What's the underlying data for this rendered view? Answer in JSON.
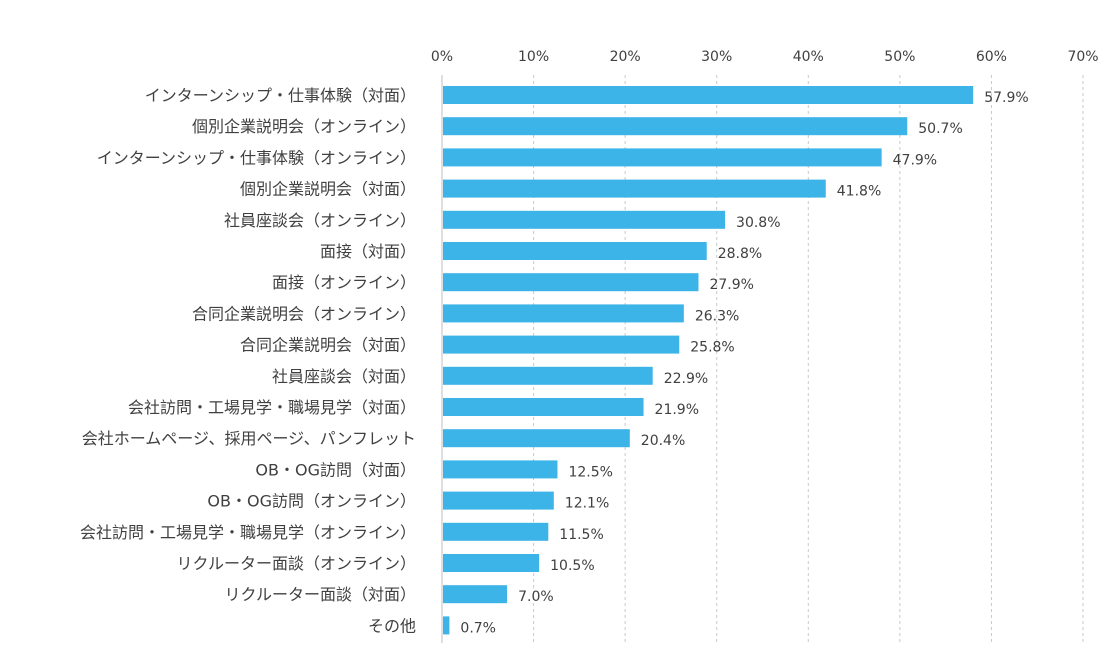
{
  "chart_data": {
    "type": "bar",
    "orientation": "horizontal",
    "title": "",
    "xlabel": "",
    "ylabel": "",
    "xlim": [
      0,
      70
    ],
    "ticks": [
      0,
      10,
      20,
      30,
      40,
      50,
      60,
      70
    ],
    "tick_labels": [
      "0%",
      "10%",
      "20%",
      "30%",
      "40%",
      "50%",
      "60%",
      "70%"
    ],
    "grid": true,
    "bar_color": "#3cb4e8",
    "categories": [
      "インターンシップ・仕事体験（対面）",
      "個別企業説明会（オンライン）",
      "インターンシップ・仕事体験（オンライン）",
      "個別企業説明会（対面）",
      "社員座談会（オンライン）",
      "面接（対面）",
      "面接（オンライン）",
      "合同企業説明会（オンライン）",
      "合同企業説明会（対面）",
      "社員座談会（対面）",
      "会社訪問・工場見学・職場見学（対面）",
      "会社ホームページ、採用ページ、パンフレット",
      "OB・OG訪問（対面）",
      "OB・OG訪問（オンライン）",
      "会社訪問・工場見学・職場見学（オンライン）",
      "リクルーター面談（オンライン）",
      "リクルーター面談（対面）",
      "その他"
    ],
    "values": [
      57.9,
      50.7,
      47.9,
      41.8,
      30.8,
      28.8,
      27.9,
      26.3,
      25.8,
      22.9,
      21.9,
      20.4,
      12.5,
      12.1,
      11.5,
      10.5,
      7.0,
      0.7
    ],
    "value_labels": [
      "57.9%",
      "50.7%",
      "47.9%",
      "41.8%",
      "30.8%",
      "28.8%",
      "27.9%",
      "26.3%",
      "25.8%",
      "22.9%",
      "21.9%",
      "20.4%",
      "12.5%",
      "12.1%",
      "11.5%",
      "10.5%",
      "7.0%",
      "0.7%"
    ]
  }
}
